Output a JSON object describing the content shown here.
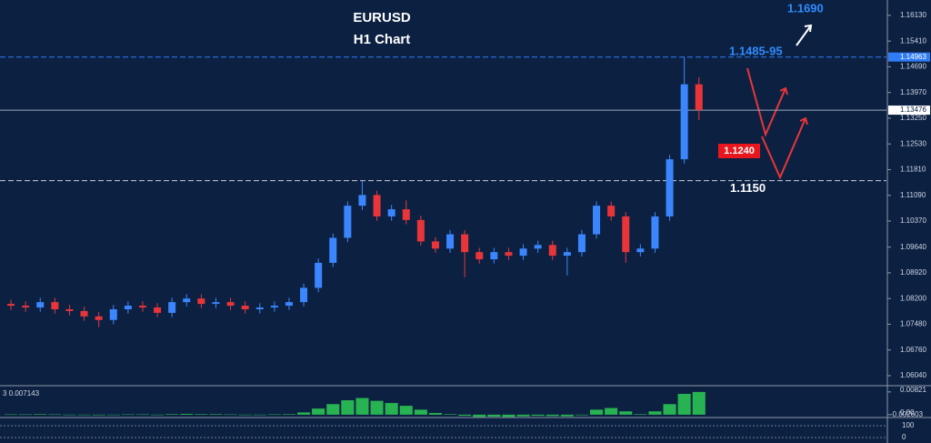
{
  "chart_data": {
    "type": "candlestick",
    "title": "EURUSD",
    "subtitle": "H1 Chart",
    "up_color": "#3b86ff",
    "down_color": "#e8353a",
    "ylim": [
      1.0576,
      1.1656
    ],
    "yticks": [
      {
        "value": 1.1613,
        "label": "1.16130"
      },
      {
        "value": 1.1541,
        "label": "1.15410"
      },
      {
        "value": 1.1469,
        "label": "1.14690"
      },
      {
        "value": 1.1397,
        "label": "1.13970"
      },
      {
        "value": 1.1325,
        "label": "1.13250"
      },
      {
        "value": 1.1253,
        "label": "1.12530"
      },
      {
        "value": 1.1181,
        "label": "1.11810"
      },
      {
        "value": 1.1109,
        "label": "1.11090"
      },
      {
        "value": 1.1037,
        "label": "1.10370"
      },
      {
        "value": 1.0964,
        "label": "1.09640"
      },
      {
        "value": 1.0892,
        "label": "1.08920"
      },
      {
        "value": 1.082,
        "label": "1.08200"
      },
      {
        "value": 1.0748,
        "label": "1.07480"
      },
      {
        "value": 1.0676,
        "label": "1.06760"
      },
      {
        "value": 1.0604,
        "label": "1.06040"
      }
    ],
    "price_markers": [
      {
        "value": 1.14963,
        "color": "#2f7cf6",
        "style": "dashed"
      },
      {
        "value": 1.13476,
        "color": "#9aa6b8",
        "style": "solid"
      }
    ],
    "levels": [
      {
        "value": 1.115,
        "label": "1.1150",
        "color": "#c8cdd6",
        "label_color": "#ffffff"
      }
    ],
    "annotations": [
      {
        "text": "1.1690",
        "color": "#2f8cff"
      },
      {
        "text": "1.1485-95",
        "color": "#2f8cff"
      },
      {
        "text": "1.1240",
        "color": "#ffffff"
      }
    ],
    "open": [
      1.0805,
      1.08,
      1.0795,
      1.081,
      1.079,
      1.0785,
      1.077,
      1.076,
      1.079,
      1.08,
      1.0795,
      1.078,
      1.081,
      1.082,
      1.0805,
      1.081,
      1.08,
      1.079,
      1.0795,
      1.08,
      1.081,
      1.085,
      1.092,
      1.099,
      1.108,
      1.111,
      1.105,
      1.107,
      1.104,
      1.098,
      1.096,
      1.1,
      1.095,
      1.093,
      1.095,
      1.094,
      1.096,
      1.097,
      1.094,
      1.095,
      1.1,
      1.108,
      1.105,
      1.095,
      1.096,
      1.105,
      1.121,
      1.142
    ],
    "high": [
      1.0817,
      1.0812,
      1.0822,
      1.0822,
      1.0802,
      1.0797,
      1.0782,
      1.0802,
      1.0812,
      1.0812,
      1.0807,
      1.0822,
      1.0832,
      1.0832,
      1.0822,
      1.0822,
      1.0812,
      1.0807,
      1.0812,
      1.0822,
      1.0862,
      1.0932,
      1.1002,
      1.1092,
      1.115,
      1.1122,
      1.1082,
      1.1095,
      1.1052,
      1.0992,
      1.1012,
      1.1012,
      1.0962,
      1.0962,
      1.0962,
      1.0972,
      1.0982,
      1.0982,
      1.0962,
      1.1012,
      1.1092,
      1.1092,
      1.1062,
      1.0972,
      1.1062,
      1.1222,
      1.1496,
      1.144
    ],
    "low": [
      1.0788,
      1.0783,
      1.0783,
      1.0778,
      1.0773,
      1.0758,
      1.074,
      1.0748,
      1.0778,
      1.0783,
      1.0768,
      1.0768,
      1.0798,
      1.0793,
      1.0793,
      1.0788,
      1.0778,
      1.0778,
      1.0783,
      1.0788,
      1.0798,
      1.0838,
      1.0908,
      1.0978,
      1.1068,
      1.1038,
      1.1038,
      1.1028,
      1.0968,
      1.0948,
      1.0948,
      1.088,
      1.0918,
      1.0918,
      1.0928,
      1.0928,
      1.0948,
      1.0928,
      1.0885,
      1.0938,
      1.0988,
      1.1038,
      1.092,
      1.0938,
      1.0948,
      1.1038,
      1.1198,
      1.132
    ],
    "close": [
      1.08,
      1.0795,
      1.081,
      1.079,
      1.0785,
      1.077,
      1.076,
      1.079,
      1.08,
      1.0795,
      1.078,
      1.081,
      1.082,
      1.0805,
      1.081,
      1.08,
      1.079,
      1.0795,
      1.08,
      1.081,
      1.085,
      1.092,
      1.099,
      1.108,
      1.111,
      1.105,
      1.107,
      1.104,
      1.098,
      1.096,
      1.1,
      1.095,
      1.093,
      1.095,
      1.094,
      1.096,
      1.097,
      1.094,
      1.095,
      1.1,
      1.108,
      1.105,
      1.095,
      1.096,
      1.105,
      1.121,
      1.142,
      1.1348
    ],
    "indicator": {
      "label": "3 0.007143",
      "color": "#2ecc55",
      "ylim": [
        -0.0007,
        0.0098
      ],
      "yticks": [
        0.00821,
        {
          "value": 0,
          "label": "0.00"
        }
      ],
      "values": [
        0.0001,
        0.0001,
        0.0002,
        0.0001,
        0,
        -0.0001,
        -0.0002,
        0,
        0.0001,
        0.0001,
        0,
        0.0002,
        0.0003,
        0.0002,
        0.0002,
        0.0001,
        0,
        0,
        0.0001,
        0.0002,
        0.0008,
        0.0022,
        0.0038,
        0.0052,
        0.006,
        0.005,
        0.0042,
        0.0032,
        0.0018,
        0.0006,
        0.0002,
        -0.0004,
        -0.0008,
        -0.0007,
        -0.0008,
        -0.0006,
        -0.0004,
        -0.0005,
        -0.0006,
        -0.0002,
        0.0018,
        0.0024,
        0.0012,
        0.0002,
        0.0012,
        0.0038,
        0.0075,
        0.0082
      ]
    },
    "oscillator": {
      "min_label": -0.002603,
      "yticks": [
        100,
        0
      ]
    }
  }
}
